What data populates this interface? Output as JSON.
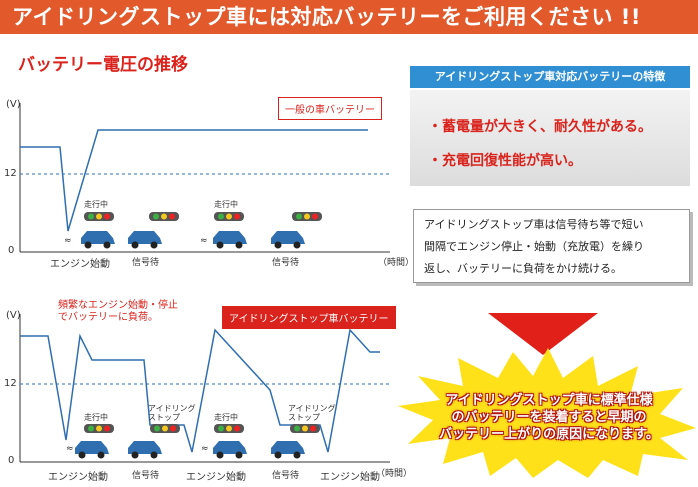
{
  "header": {
    "title": "アイドリングストップ車には対応バッテリーをご利用ください !!"
  },
  "subtitle": "バッテリー電圧の推移",
  "chart1": {
    "label": "一般の車バッテリー",
    "axis": {
      "v": "(V)",
      "y12": "12",
      "y0": "0",
      "time": "（時間）"
    },
    "annotations": {
      "driving1": "走行中",
      "driving2": "走行中"
    },
    "xlabels": {
      "engine_start": "エンジン始動",
      "signal1": "信号待",
      "signal2": "信号待"
    }
  },
  "chart2": {
    "label": "アイドリングストップ車バッテリー",
    "warning_line1": "頻繁なエンジン始動・停止",
    "warning_line2": "でバッテリーに負荷。",
    "axis": {
      "v": "(V)",
      "y12": "12",
      "y0": "0",
      "time": "（時間）"
    },
    "annotations": {
      "driving1": "走行中",
      "idle1a": "アイドリング",
      "idle1b": "ストップ",
      "driving2": "走行中",
      "idle2a": "アイドリング",
      "idle2b": "ストップ"
    },
    "xlabels": {
      "engine_start1": "エンジン始動",
      "signal1": "信号待",
      "engine_start2": "エンジン始動",
      "signal2": "信号待",
      "engine_start3": "エンジン始動"
    }
  },
  "features": {
    "heading": "アイドリングストップ車対応バッテリーの特徴",
    "item1": "・蓄電量が大きく、耐久性がある。",
    "item2": "・充電回復性能が高い。"
  },
  "description": {
    "line1": "アイドリングストップ車は信号待ち等で短い",
    "line2": "間隔でエンジン停止・始動（充放電）を繰り",
    "line3": "返し、バッテリーに負荷をかけ続ける。"
  },
  "callout": {
    "line1": "アイドリングストップ車に標準仕様",
    "line2": "のバッテリーを装着すると早期の",
    "line3": "バッテリー上がりの原因になります。"
  },
  "colors": {
    "banner": "#e2592c",
    "accent_red": "#d9231c",
    "line_blue": "#2f6fb0",
    "feature_blue": "#2f8fd2",
    "burst_yellow": "#ffe11a"
  }
}
